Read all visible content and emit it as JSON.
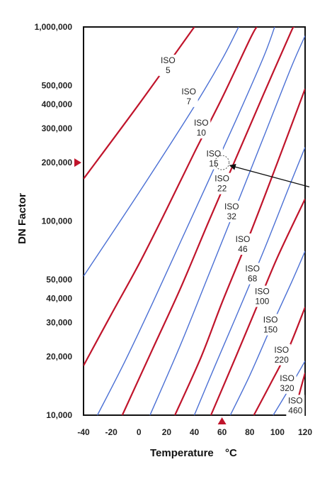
{
  "chart_data": {
    "type": "line",
    "xlabel": "Temperature",
    "xunit": "°C",
    "ylabel": "DN Factor",
    "xlim": [
      -40,
      120
    ],
    "ylim": [
      10000,
      1000000
    ],
    "yscale": "log",
    "grid": false,
    "x_ticks": [
      "-40",
      "-20",
      "0",
      "20",
      "40",
      "60",
      "80",
      "100",
      "120"
    ],
    "y_ticks": [
      {
        "label": "1,000,000",
        "value": 1000000
      },
      {
        "label": "500,000",
        "value": 500000
      },
      {
        "label": "400,000",
        "value": 400000
      },
      {
        "label": "300,000",
        "value": 300000
      },
      {
        "label": "200,000",
        "value": 200000
      },
      {
        "label": "100,000",
        "value": 100000
      },
      {
        "label": "50,000",
        "value": 50000
      },
      {
        "label": "40,000",
        "value": 40000
      },
      {
        "label": "30,000",
        "value": 30000
      },
      {
        "label": "20,000",
        "value": 20000
      },
      {
        "label": "10,000",
        "value": 10000
      }
    ],
    "series": [
      {
        "name": "ISO 5",
        "color": "#c0142b",
        "label_pos": [
          21,
          650000
        ],
        "points": [
          [
            -40,
            165000
          ],
          [
            0,
            400000
          ],
          [
            40,
            1000000
          ]
        ]
      },
      {
        "name": "ISO 7",
        "color": "#4a6fd4",
        "label_pos": [
          36,
          450000
        ],
        "points": [
          [
            -40,
            52000
          ],
          [
            0,
            140000
          ],
          [
            40,
            390000
          ],
          [
            60,
            680000
          ],
          [
            72,
            1000000
          ]
        ]
      },
      {
        "name": "ISO 10",
        "color": "#c0142b",
        "label_pos": [
          45,
          310000
        ],
        "points": [
          [
            -40,
            18000
          ],
          [
            -20,
            33000
          ],
          [
            0,
            60000
          ],
          [
            20,
            115000
          ],
          [
            40,
            225000
          ],
          [
            60,
            430000
          ],
          [
            80,
            860000
          ],
          [
            85,
            1000000
          ]
        ]
      },
      {
        "name": "ISO 15",
        "color": "#4a6fd4",
        "label_pos": [
          54,
          215000
        ],
        "points": [
          [
            -30,
            10000
          ],
          [
            -10,
            19000
          ],
          [
            10,
            38000
          ],
          [
            30,
            78000
          ],
          [
            50,
            160000
          ],
          [
            70,
            330000
          ],
          [
            90,
            700000
          ],
          [
            98,
            1000000
          ]
        ]
      },
      {
        "name": "ISO 22",
        "color": "#c0142b",
        "label_pos": [
          60,
          160000
        ],
        "points": [
          [
            -12,
            10000
          ],
          [
            10,
            22000
          ],
          [
            30,
            45000
          ],
          [
            50,
            98000
          ],
          [
            70,
            210000
          ],
          [
            90,
            450000
          ],
          [
            110,
            950000
          ],
          [
            112,
            1000000
          ]
        ]
      },
      {
        "name": "ISO 32",
        "color": "#4a6fd4",
        "label_pos": [
          67,
          115000
        ],
        "points": [
          [
            8,
            10000
          ],
          [
            30,
            23000
          ],
          [
            50,
            52000
          ],
          [
            70,
            118000
          ],
          [
            90,
            270000
          ],
          [
            110,
            620000
          ],
          [
            120,
            900000
          ]
        ]
      },
      {
        "name": "ISO 46",
        "color": "#c0142b",
        "label_pos": [
          75,
          78000
        ],
        "points": [
          [
            26,
            10000
          ],
          [
            45,
            20000
          ],
          [
            60,
            38000
          ],
          [
            80,
            85000
          ],
          [
            100,
            200000
          ],
          [
            120,
            480000
          ]
        ]
      },
      {
        "name": "ISO 68",
        "color": "#4a6fd4",
        "label_pos": [
          82,
          55000
        ],
        "points": [
          [
            40,
            10000
          ],
          [
            55,
            18000
          ],
          [
            70,
            32000
          ],
          [
            90,
            70000
          ],
          [
            110,
            160000
          ],
          [
            120,
            240000
          ]
        ]
      },
      {
        "name": "ISO 100",
        "color": "#c0142b",
        "label_pos": [
          89,
          42000
        ],
        "points": [
          [
            52,
            10000
          ],
          [
            70,
            20000
          ],
          [
            85,
            36000
          ],
          [
            100,
            65000
          ],
          [
            120,
            130000
          ]
        ]
      },
      {
        "name": "ISO 150",
        "color": "#4a6fd4",
        "label_pos": [
          95,
          30000
        ],
        "points": [
          [
            66,
            10000
          ],
          [
            80,
            16000
          ],
          [
            95,
            28000
          ],
          [
            110,
            48000
          ],
          [
            120,
            70000
          ]
        ]
      },
      {
        "name": "ISO 220",
        "color": "#c0142b",
        "label_pos": [
          103,
          21000
        ],
        "points": [
          [
            83,
            10000
          ],
          [
            95,
            14500
          ],
          [
            108,
            22000
          ],
          [
            120,
            36000
          ]
        ]
      },
      {
        "name": "ISO 320",
        "color": "#4a6fd4",
        "label_pos": [
          107,
          15000
        ],
        "points": [
          [
            97,
            10000
          ],
          [
            108,
            13500
          ],
          [
            120,
            19000
          ]
        ]
      },
      {
        "name": "ISO 460",
        "color": "#c0142b",
        "label_pos": [
          113,
          11500
        ],
        "points": [
          [
            112,
            10000
          ],
          [
            116,
            13000
          ],
          [
            120,
            16500
          ]
        ]
      }
    ],
    "marker_x": 60,
    "marker_y": 200000,
    "operating_point": [
      60,
      200000
    ],
    "pointer_from": [
      120,
      150000
    ]
  }
}
